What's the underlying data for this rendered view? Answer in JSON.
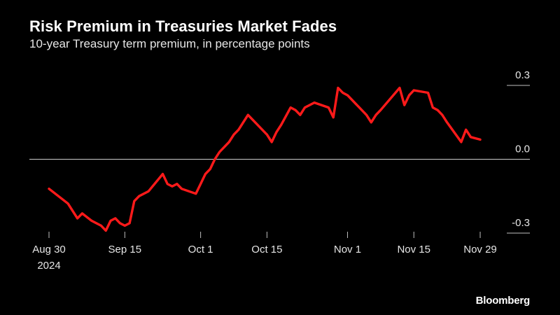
{
  "header": {
    "title": "Risk Premium in Treasuries Market Fades",
    "subtitle": "10-year Treasury term premium, in percentage points"
  },
  "footer": {
    "source": "Bloomberg"
  },
  "colors": {
    "line": "#ff1a1a",
    "background": "#000000",
    "text": "#ffffff",
    "zero_line": "#cccccc"
  },
  "chart_data": {
    "type": "line",
    "title": "Risk Premium in Treasuries Market Fades",
    "subtitle": "10-year Treasury term premium, in percentage points",
    "xlabel": "",
    "ylabel": "",
    "ylim": [
      -0.3,
      0.3
    ],
    "yticks": [
      {
        "value": 0.3,
        "label": "0.3"
      },
      {
        "value": 0.0,
        "label": "0.0"
      },
      {
        "value": -0.3,
        "label": "-0.3"
      }
    ],
    "xticks": [
      {
        "day": 0,
        "label": "Aug 30",
        "sublabel": "2024"
      },
      {
        "day": 16,
        "label": "Sep 15"
      },
      {
        "day": 32,
        "label": "Oct 1"
      },
      {
        "day": 46,
        "label": "Oct 15"
      },
      {
        "day": 63,
        "label": "Nov 1"
      },
      {
        "day": 77,
        "label": "Nov 15"
      },
      {
        "day": 91,
        "label": "Nov 29"
      }
    ],
    "x_range": [
      0,
      91
    ],
    "series": [
      {
        "name": "10-year Treasury term premium",
        "x": [
          0,
          4,
          6,
          7,
          9,
          11,
          12,
          13,
          14,
          15,
          16,
          17,
          18,
          19,
          20,
          21,
          24,
          25,
          26,
          27,
          28,
          31,
          32,
          33,
          34,
          35,
          36,
          37,
          38,
          39,
          40,
          41,
          42,
          46,
          47,
          48,
          49,
          51,
          52,
          53,
          54,
          56,
          59,
          60,
          61,
          62,
          63,
          67,
          68,
          69,
          70,
          74,
          75,
          76,
          77,
          80,
          81,
          82,
          83,
          84,
          87,
          88,
          89,
          91
        ],
        "values": [
          -0.12,
          -0.18,
          -0.24,
          -0.22,
          -0.25,
          -0.27,
          -0.29,
          -0.25,
          -0.24,
          -0.26,
          -0.27,
          -0.26,
          -0.17,
          -0.15,
          -0.14,
          -0.13,
          -0.06,
          -0.1,
          -0.11,
          -0.1,
          -0.12,
          -0.14,
          -0.1,
          -0.06,
          -0.04,
          0.0,
          0.03,
          0.05,
          0.07,
          0.1,
          0.12,
          0.15,
          0.18,
          0.1,
          0.07,
          0.11,
          0.14,
          0.21,
          0.2,
          0.18,
          0.21,
          0.23,
          0.21,
          0.17,
          0.29,
          0.27,
          0.26,
          0.18,
          0.15,
          0.18,
          0.2,
          0.29,
          0.22,
          0.26,
          0.28,
          0.27,
          0.21,
          0.2,
          0.18,
          0.15,
          0.07,
          0.12,
          0.09,
          0.08
        ]
      }
    ]
  }
}
